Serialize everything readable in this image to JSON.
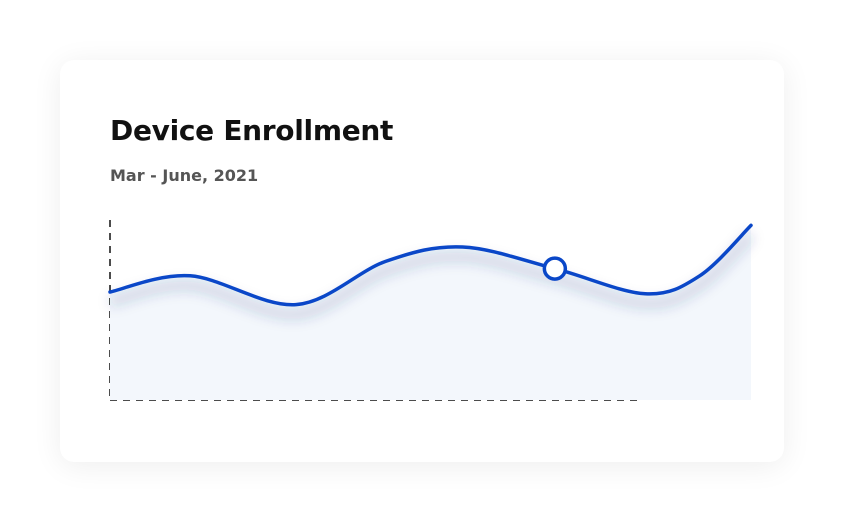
{
  "chart_data": {
    "type": "area",
    "title": "Device Enrollment",
    "subtitle": "Mar - June, 2021",
    "x": [
      0,
      12.5,
      29,
      43,
      55,
      69.4,
      83.5,
      92,
      100
    ],
    "values": [
      60,
      69,
      53,
      77,
      85,
      73,
      59,
      69,
      97
    ],
    "xlim": [
      0,
      100
    ],
    "ylim": [
      0,
      100
    ],
    "color": "#0a47c8",
    "fill": "#f3f7fc",
    "highlight": 5
  }
}
